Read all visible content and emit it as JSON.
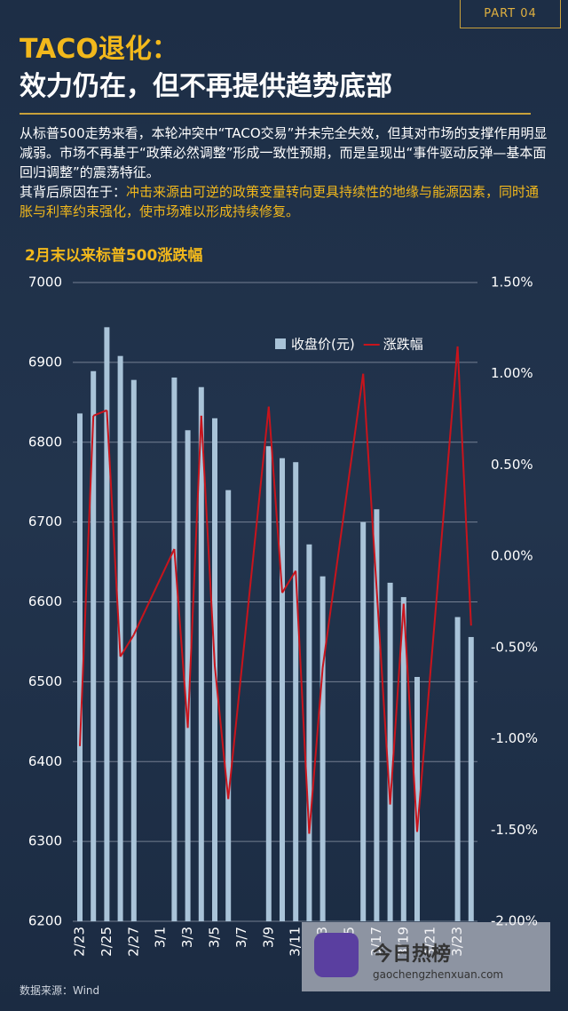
{
  "header": {
    "part": "PART 04",
    "title_line1": "TACO退化：",
    "title_line2": "效力仍在，但不再提供趋势底部"
  },
  "body": {
    "paragraph1": "从标普500走势来看，本轮冲突中“TACO交易”并未完全失效，但其对市场的支撑作用明显减弱。市场不再基于“政策必然调整”形成一致性预期，而是呈现出“事件驱动反弹—基本面回归调整”的震荡特征。",
    "paragraph2_lead": "其背后原因在于：",
    "paragraph2_highlight": "冲击来源由可逆的政策变量转向更具持续性的地缘与能源因素，同时通胀与利率约束强化，使市场难以形成持续修复。"
  },
  "chart_data": {
    "type": "bar_line",
    "title": "2月末以来标普500涨跌幅",
    "categories": [
      "2/23",
      null,
      "2/25",
      null,
      "2/27",
      null,
      "3/1",
      null,
      "3/3",
      null,
      "3/5",
      null,
      "3/7",
      null,
      "3/9",
      null,
      "3/11",
      null,
      "3/13",
      null,
      "3/15",
      null,
      "3/17",
      null,
      "3/19",
      null,
      "3/21",
      null,
      "3/23",
      null
    ],
    "series": [
      {
        "name": "收盘价(元)",
        "type": "bar",
        "color": "#a9c3d8",
        "values": [
          6836,
          6889,
          6944,
          6908,
          6878,
          null,
          null,
          6881,
          6815,
          6869,
          6830,
          6740,
          null,
          null,
          6795,
          6780,
          6775,
          6672,
          6632,
          null,
          null,
          6700,
          6716,
          6624,
          6606,
          6506,
          null,
          null,
          6581,
          6556
        ]
      },
      {
        "name": "涨跌幅",
        "type": "line",
        "color": "#c8141c",
        "axis": "y2",
        "values": [
          -1.04,
          0.77,
          0.8,
          -0.55,
          -0.43,
          null,
          null,
          0.04,
          -0.94,
          0.77,
          -0.6,
          -1.33,
          null,
          null,
          0.82,
          -0.2,
          -0.08,
          -1.52,
          -0.61,
          null,
          null,
          1.0,
          -0.18,
          -1.36,
          -0.26,
          -1.51,
          null,
          null,
          1.15,
          -0.38
        ]
      }
    ],
    "ylim": [
      6200,
      7000
    ],
    "yticks": [
      6200,
      6300,
      6400,
      6500,
      6600,
      6700,
      6800,
      6900,
      7000
    ],
    "y2lim": [
      -2.0,
      1.5
    ],
    "y2ticks": [
      {
        "value": -2.0,
        "label": "-2.00%"
      },
      {
        "value": -1.5,
        "label": "-1.50%"
      },
      {
        "value": -1.0,
        "label": "-1.00%"
      },
      {
        "value": -0.5,
        "label": "-0.50%"
      },
      {
        "value": 0,
        "label": "0.00%"
      },
      {
        "value": 0.5,
        "label": "0.50%"
      },
      {
        "value": 1.0,
        "label": "1.00%"
      },
      {
        "value": 1.5,
        "label": "1.50%"
      }
    ],
    "grid": true,
    "legend": "top"
  },
  "source": "数据来源：Wind",
  "watermark": {
    "name": "今日热榜",
    "url": "gaochengzhenxuan.com"
  }
}
